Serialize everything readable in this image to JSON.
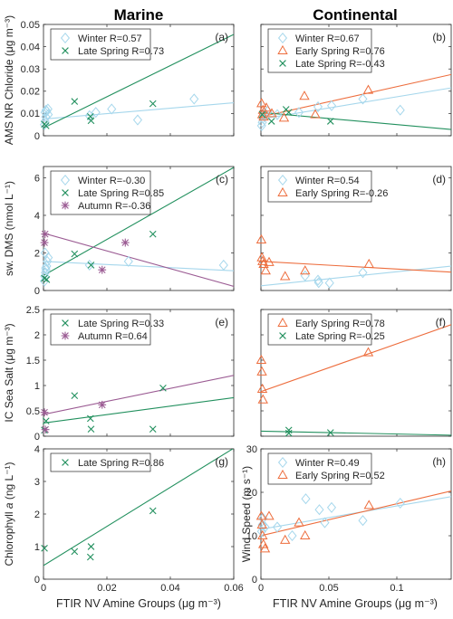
{
  "figure": {
    "col_titles": [
      "Marine",
      "Continental"
    ],
    "x_label": "FTIR NV Amine Groups (μg m⁻³)"
  },
  "colors": {
    "Winter": "#a6d7ec",
    "Early Spring": "#ed6d3d",
    "Late Spring": "#22905e",
    "Autumn": "#9b5b93"
  },
  "chart_data": [
    {
      "type": "scatter",
      "panel": "a",
      "panel_label": "(a)",
      "ylabel": "AMS NR Chloride (μg m⁻³)",
      "xlim": [
        0,
        0.06
      ],
      "ylim": [
        0,
        0.05
      ],
      "xticks": [
        0,
        0.02,
        0.04,
        0.06
      ],
      "xticklabels": [],
      "yticks": [
        0,
        0.01,
        0.02,
        0.03,
        0.04,
        0.05
      ],
      "yticklabels": [
        "0",
        "0.01",
        "0.02",
        "0.03",
        "0.04",
        "0.05"
      ],
      "legend_position": "top-left",
      "series": [
        {
          "name": "Winter",
          "legend": "Winter R=0.57",
          "marker": "diamond",
          "fit": [
            [
              0,
              0.0075
            ],
            [
              0.06,
              0.0148
            ]
          ],
          "points": [
            [
              0.0003,
              0.005
            ],
            [
              0.0005,
              0.0065
            ],
            [
              0.0007,
              0.0085
            ],
            [
              0.0005,
              0.0105
            ],
            [
              0.001,
              0.011
            ],
            [
              0.0015,
              0.0095
            ],
            [
              0.0008,
              0.0115
            ],
            [
              0.0014,
              0.012
            ],
            [
              0.0145,
              0.009
            ],
            [
              0.0165,
              0.0105
            ],
            [
              0.0215,
              0.012
            ],
            [
              0.0297,
              0.0071
            ],
            [
              0.0475,
              0.0165
            ]
          ]
        },
        {
          "name": "Late Spring",
          "legend": "Late Spring R=0.73",
          "marker": "x",
          "fit": [
            [
              0,
              0.0035
            ],
            [
              0.06,
              0.0455
            ]
          ],
          "points": [
            [
              0.0003,
              0.0052
            ],
            [
              0.0008,
              0.0045
            ],
            [
              0.0098,
              0.0154
            ],
            [
              0.0148,
              0.0086
            ],
            [
              0.015,
              0.0068
            ],
            [
              0.0345,
              0.0144
            ]
          ]
        }
      ]
    },
    {
      "type": "scatter",
      "panel": "b",
      "panel_label": "(b)",
      "ylabel": "",
      "xlim": [
        0,
        0.14
      ],
      "ylim": [
        0,
        0.05
      ],
      "xticks": [
        0,
        0.05,
        0.1
      ],
      "xticklabels": [],
      "yticks": [
        0,
        0.01,
        0.02,
        0.03,
        0.04,
        0.05
      ],
      "yticklabels": [],
      "legend_position": "top-left",
      "series": [
        {
          "name": "Winter",
          "legend": "Winter R=0.67",
          "marker": "diamond",
          "fit": [
            [
              0,
              0.0075
            ],
            [
              0.14,
              0.0215
            ]
          ],
          "points": [
            [
              0.0005,
              0.0045
            ],
            [
              0.001,
              0.006
            ],
            [
              0.0015,
              0.0078
            ],
            [
              0.002,
              0.009
            ],
            [
              0.003,
              0.01
            ],
            [
              0.005,
              0.011
            ],
            [
              0.012,
              0.0095
            ],
            [
              0.028,
              0.0105
            ],
            [
              0.042,
              0.013
            ],
            [
              0.052,
              0.0135
            ],
            [
              0.075,
              0.0165
            ],
            [
              0.1025,
              0.0115
            ]
          ]
        },
        {
          "name": "Early Spring",
          "legend": "Early Spring R=0.76",
          "marker": "triangle",
          "fit": [
            [
              0,
              0.0085
            ],
            [
              0.14,
              0.0275
            ]
          ],
          "points": [
            [
              0.0005,
              0.0145
            ],
            [
              0.001,
              0.0095
            ],
            [
              0.0015,
              0.0115
            ],
            [
              0.002,
              0.0085
            ],
            [
              0.004,
              0.0125
            ],
            [
              0.008,
              0.01
            ],
            [
              0.017,
              0.008
            ],
            [
              0.032,
              0.0178
            ],
            [
              0.04,
              0.0095
            ],
            [
              0.079,
              0.0205
            ]
          ]
        },
        {
          "name": "Late Spring",
          "legend": "Late Spring R=-0.43",
          "marker": "x",
          "fit": [
            [
              0,
              0.0105
            ],
            [
              0.14,
              0.0028
            ]
          ],
          "points": [
            [
              0.001,
              0.0095
            ],
            [
              0.0078,
              0.0065
            ],
            [
              0.0185,
              0.0118
            ],
            [
              0.0205,
              0.0105
            ],
            [
              0.0512,
              0.0065
            ]
          ]
        }
      ]
    },
    {
      "type": "scatter",
      "panel": "c",
      "panel_label": "(c)",
      "ylabel": "sw. DMS (nmol L⁻¹)",
      "xlim": [
        0,
        0.06
      ],
      "ylim": [
        0,
        6.6
      ],
      "xticks": [
        0,
        0.02,
        0.04,
        0.06
      ],
      "xticklabels": [],
      "yticks": [
        0,
        2,
        4,
        6
      ],
      "yticklabels": [
        "0",
        "2",
        "4",
        "6"
      ],
      "legend_position": "top-left",
      "series": [
        {
          "name": "Winter",
          "legend": "Winter R=-0.30",
          "marker": "diamond",
          "fit": [
            [
              0,
              1.55
            ],
            [
              0.06,
              1.05
            ]
          ],
          "points": [
            [
              0.0003,
              0.5
            ],
            [
              0.0004,
              0.75
            ],
            [
              0.0006,
              0.95
            ],
            [
              0.0008,
              1.1
            ],
            [
              0.001,
              1.3
            ],
            [
              0.0012,
              1.55
            ],
            [
              0.0015,
              1.75
            ],
            [
              0.0005,
              2.0
            ],
            [
              0.0007,
              1.2
            ],
            [
              0.0145,
              1.35
            ],
            [
              0.0268,
              1.55
            ],
            [
              0.0568,
              1.35
            ]
          ]
        },
        {
          "name": "Late Spring",
          "legend": "Late Spring R=0.85",
          "marker": "x",
          "fit": [
            [
              0,
              0.8
            ],
            [
              0.06,
              6.55
            ]
          ],
          "points": [
            [
              0.0003,
              0.65
            ],
            [
              0.001,
              0.58
            ],
            [
              0.0098,
              1.95
            ],
            [
              0.015,
              1.35
            ],
            [
              0.0345,
              3.0
            ]
          ]
        },
        {
          "name": "Autumn",
          "legend": "Autumn R=-0.36",
          "marker": "asterisk",
          "fit": [
            [
              0,
              3.05
            ],
            [
              0.06,
              0.22
            ]
          ],
          "points": [
            [
              0.0003,
              2.55
            ],
            [
              0.0005,
              3.0
            ],
            [
              0.0185,
              1.1
            ],
            [
              0.0258,
              2.55
            ]
          ]
        }
      ]
    },
    {
      "type": "scatter",
      "panel": "d",
      "panel_label": "(d)",
      "ylabel": "",
      "xlim": [
        0,
        0.14
      ],
      "ylim": [
        0,
        6.6
      ],
      "xticks": [
        0,
        0.05,
        0.1
      ],
      "xticklabels": [],
      "yticks": [
        0,
        2,
        4,
        6
      ],
      "yticklabels": [],
      "legend_position": "top-left",
      "series": [
        {
          "name": "Winter",
          "legend": "Winter R=0.54",
          "marker": "diamond",
          "fit": [
            [
              0,
              0.25
            ],
            [
              0.14,
              1.3
            ]
          ],
          "points": [
            [
              0.0325,
              0.78
            ],
            [
              0.042,
              0.55
            ],
            [
              0.0425,
              0.42
            ],
            [
              0.0505,
              0.4
            ],
            [
              0.075,
              0.95
            ]
          ]
        },
        {
          "name": "Early Spring",
          "legend": "Early Spring R=-0.26",
          "marker": "triangle",
          "fit": [
            [
              0,
              1.55
            ],
            [
              0.14,
              0.98
            ]
          ],
          "points": [
            [
              0.0003,
              2.7
            ],
            [
              0.0007,
              1.75
            ],
            [
              0.0012,
              1.55
            ],
            [
              0.002,
              1.4
            ],
            [
              0.0035,
              1.05
            ],
            [
              0.006,
              1.5
            ],
            [
              0.0178,
              0.75
            ],
            [
              0.0325,
              1.05
            ],
            [
              0.0795,
              1.4
            ]
          ]
        }
      ]
    },
    {
      "type": "scatter",
      "panel": "e",
      "panel_label": "(e)",
      "ylabel": "IC Sea Salt (μg m⁻³)",
      "xlim": [
        0,
        0.06
      ],
      "ylim": [
        0,
        2.5
      ],
      "xticks": [
        0,
        0.02,
        0.04,
        0.06
      ],
      "xticklabels": [],
      "yticks": [
        0,
        0.5,
        1,
        1.5,
        2,
        2.5
      ],
      "yticklabels": [
        "0",
        "0.5",
        "1",
        "1.5",
        "2",
        "2.5"
      ],
      "legend_position": "top-left",
      "series": [
        {
          "name": "Late Spring",
          "legend": "Late Spring R=0.33",
          "marker": "x",
          "fit": [
            [
              0,
              0.26
            ],
            [
              0.06,
              0.76
            ]
          ],
          "points": [
            [
              0.0003,
              0.12
            ],
            [
              0.0008,
              0.3
            ],
            [
              0.0098,
              0.8
            ],
            [
              0.0148,
              0.35
            ],
            [
              0.015,
              0.14
            ],
            [
              0.0345,
              0.14
            ],
            [
              0.0377,
              0.95
            ]
          ]
        },
        {
          "name": "Autumn",
          "legend": "Autumn R=0.64",
          "marker": "asterisk",
          "fit": [
            [
              0,
              0.43
            ],
            [
              0.06,
              1.2
            ]
          ],
          "points": [
            [
              0.0003,
              0.47
            ],
            [
              0.0006,
              0.13
            ],
            [
              0.0185,
              0.62
            ]
          ]
        }
      ]
    },
    {
      "type": "scatter",
      "panel": "f",
      "panel_label": "(f)",
      "ylabel": "",
      "xlim": [
        0,
        0.14
      ],
      "ylim": [
        0,
        2.5
      ],
      "xticks": [
        0,
        0.05,
        0.1
      ],
      "xticklabels": [],
      "yticks": [
        0,
        0.5,
        1,
        1.5,
        2,
        2.5
      ],
      "yticklabels": [],
      "legend_position": "top-left",
      "series": [
        {
          "name": "Early Spring",
          "legend": "Early Spring R=0.78",
          "marker": "triangle",
          "fit": [
            [
              0,
              0.88
            ],
            [
              0.14,
              2.2
            ]
          ],
          "points": [
            [
              0.0003,
              1.5
            ],
            [
              0.0007,
              1.27
            ],
            [
              0.001,
              0.93
            ],
            [
              0.0015,
              0.72
            ],
            [
              0.079,
              1.65
            ]
          ]
        },
        {
          "name": "Late Spring",
          "legend": "Late Spring R=-0.25",
          "marker": "x",
          "fit": [
            [
              0,
              0.1
            ],
            [
              0.14,
              0.02
            ]
          ],
          "points": [
            [
              0.0205,
              0.12
            ],
            [
              0.0205,
              0.06
            ],
            [
              0.0512,
              0.07
            ]
          ]
        }
      ]
    },
    {
      "type": "scatter",
      "panel": "g",
      "panel_label": "(g)",
      "ylabel": "Chlorophyll a (ng L⁻¹)",
      "xlim": [
        0,
        0.06
      ],
      "ylim": [
        0,
        4
      ],
      "xticks": [
        0,
        0.02,
        0.04,
        0.06
      ],
      "xticklabels": [
        "0",
        "0.02",
        "0.04",
        "0.06"
      ],
      "yticks": [
        0,
        1,
        2,
        3,
        4
      ],
      "yticklabels": [
        "0",
        "1",
        "2",
        "3",
        "4"
      ],
      "legend_position": "top-left",
      "series": [
        {
          "name": "Late Spring",
          "legend": "Late Spring R=0.86",
          "marker": "x",
          "fit": [
            [
              0,
              0.42
            ],
            [
              0.06,
              4.02
            ]
          ],
          "points": [
            [
              0.0003,
              0.95
            ],
            [
              0.0098,
              0.85
            ],
            [
              0.0148,
              0.68
            ],
            [
              0.015,
              1.0
            ],
            [
              0.0345,
              2.1
            ]
          ]
        }
      ]
    },
    {
      "type": "scatter",
      "panel": "h",
      "panel_label": "(h)",
      "ylabel": "Wind Speed (m s⁻¹)",
      "xlim": [
        0,
        0.14
      ],
      "ylim": [
        0,
        30
      ],
      "xticks": [
        0,
        0.05,
        0.1
      ],
      "xticklabels": [
        "0",
        "0.05",
        "0.1"
      ],
      "yticks": [
        0,
        10,
        20,
        30
      ],
      "yticklabels": [
        "0",
        "10",
        "20",
        "30"
      ],
      "legend_position": "top-left",
      "series": [
        {
          "name": "Winter",
          "legend": "Winter R=0.49",
          "marker": "diamond",
          "fit": [
            [
              0,
              11.5
            ],
            [
              0.14,
              19.0
            ]
          ],
          "points": [
            [
              0.0005,
              11
            ],
            [
              0.001,
              12.5
            ],
            [
              0.0015,
              14
            ],
            [
              0.003,
              12
            ],
            [
              0.012,
              12
            ],
            [
              0.023,
              10
            ],
            [
              0.033,
              18.5
            ],
            [
              0.043,
              16
            ],
            [
              0.047,
              13
            ],
            [
              0.052,
              16.5
            ],
            [
              0.075,
              13.5
            ],
            [
              0.1025,
              17.5
            ]
          ]
        },
        {
          "name": "Early Spring",
          "legend": "Early Spring R=0.52",
          "marker": "triangle",
          "fit": [
            [
              0,
              10.0
            ],
            [
              0.14,
              20.3
            ]
          ],
          "points": [
            [
              0.0003,
              14.5
            ],
            [
              0.0008,
              12.5
            ],
            [
              0.0012,
              10
            ],
            [
              0.0018,
              8
            ],
            [
              0.003,
              7
            ],
            [
              0.006,
              14.5
            ],
            [
              0.0178,
              9
            ],
            [
              0.028,
              13
            ],
            [
              0.0325,
              10
            ],
            [
              0.0795,
              17
            ]
          ]
        }
      ]
    }
  ]
}
